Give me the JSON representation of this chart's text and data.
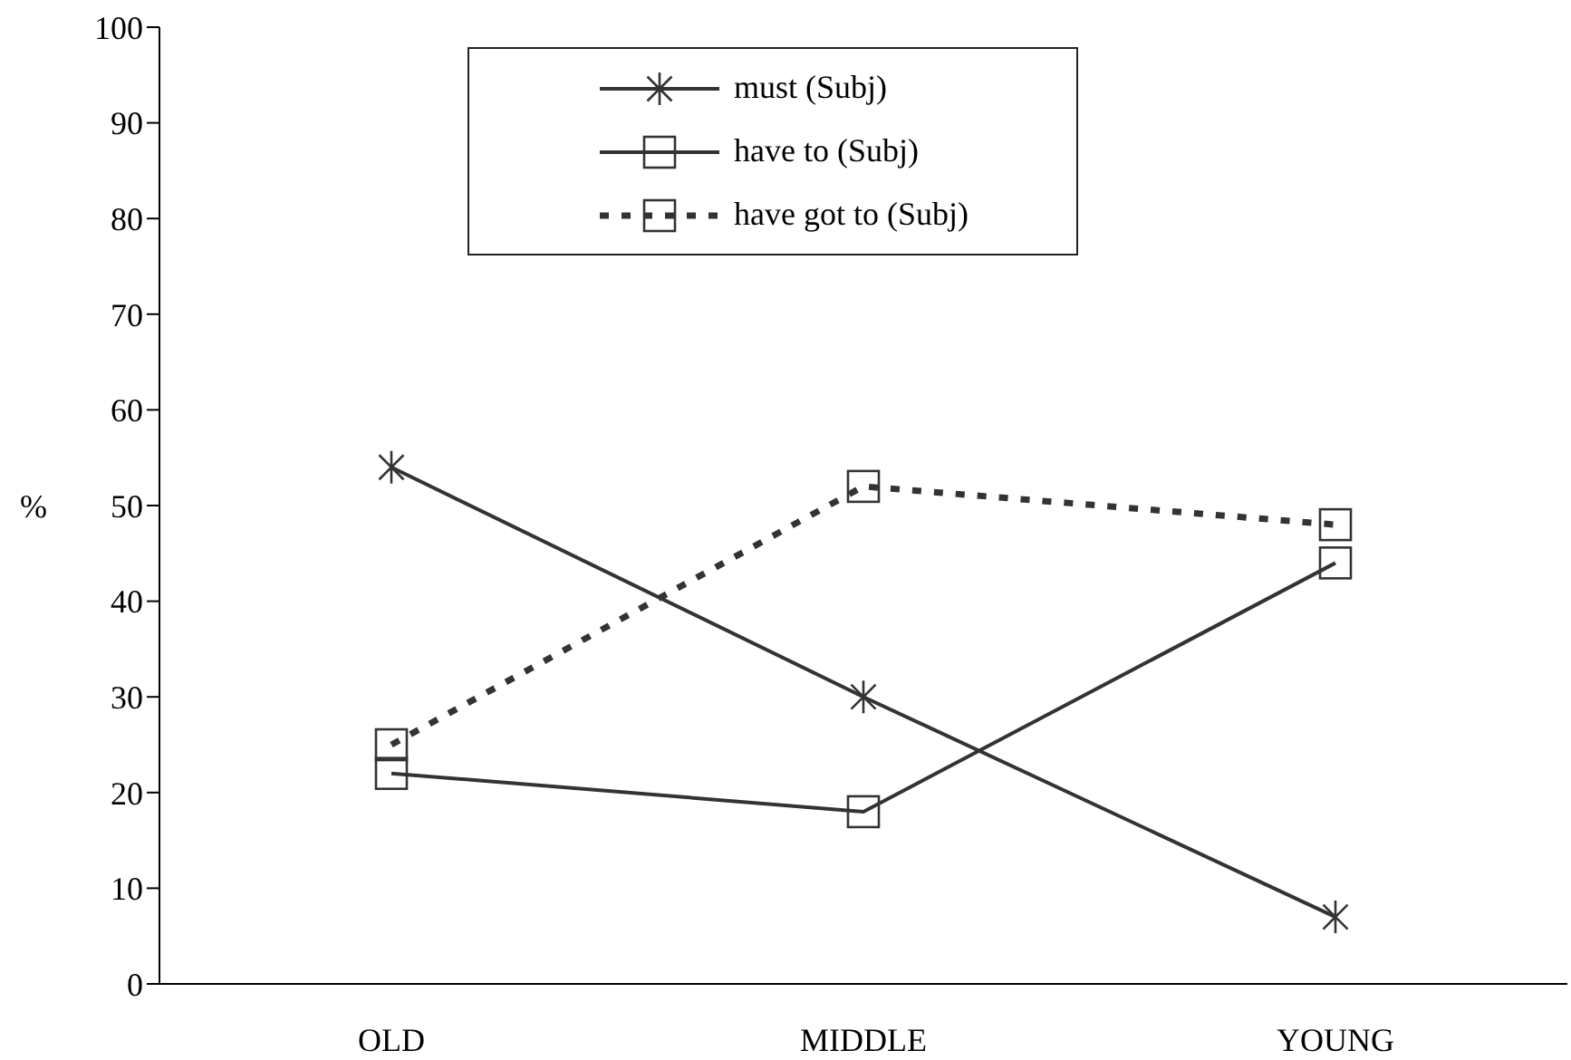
{
  "chart_data": {
    "type": "line",
    "ylabel": "%",
    "categories": [
      "OLD",
      "MIDDLE",
      "YOUNG"
    ],
    "series": [
      {
        "name": "must (Subj)",
        "color": "#333333",
        "values": [
          54,
          30,
          7
        ],
        "marker": "cross",
        "line_style": "solid"
      },
      {
        "name": "have to (Subj)",
        "color": "#333333",
        "values": [
          22,
          18,
          44
        ],
        "marker": "square",
        "line_style": "solid"
      },
      {
        "name": "have got to (Subj)",
        "color": "#333333",
        "values": [
          25,
          52,
          48
        ],
        "marker": "square",
        "line_style": "dotted"
      }
    ],
    "ylim": [
      0,
      100
    ],
    "yticks": [
      0,
      10,
      20,
      30,
      40,
      50,
      60,
      70,
      80,
      90,
      100
    ],
    "grid": false,
    "legend": "top"
  }
}
